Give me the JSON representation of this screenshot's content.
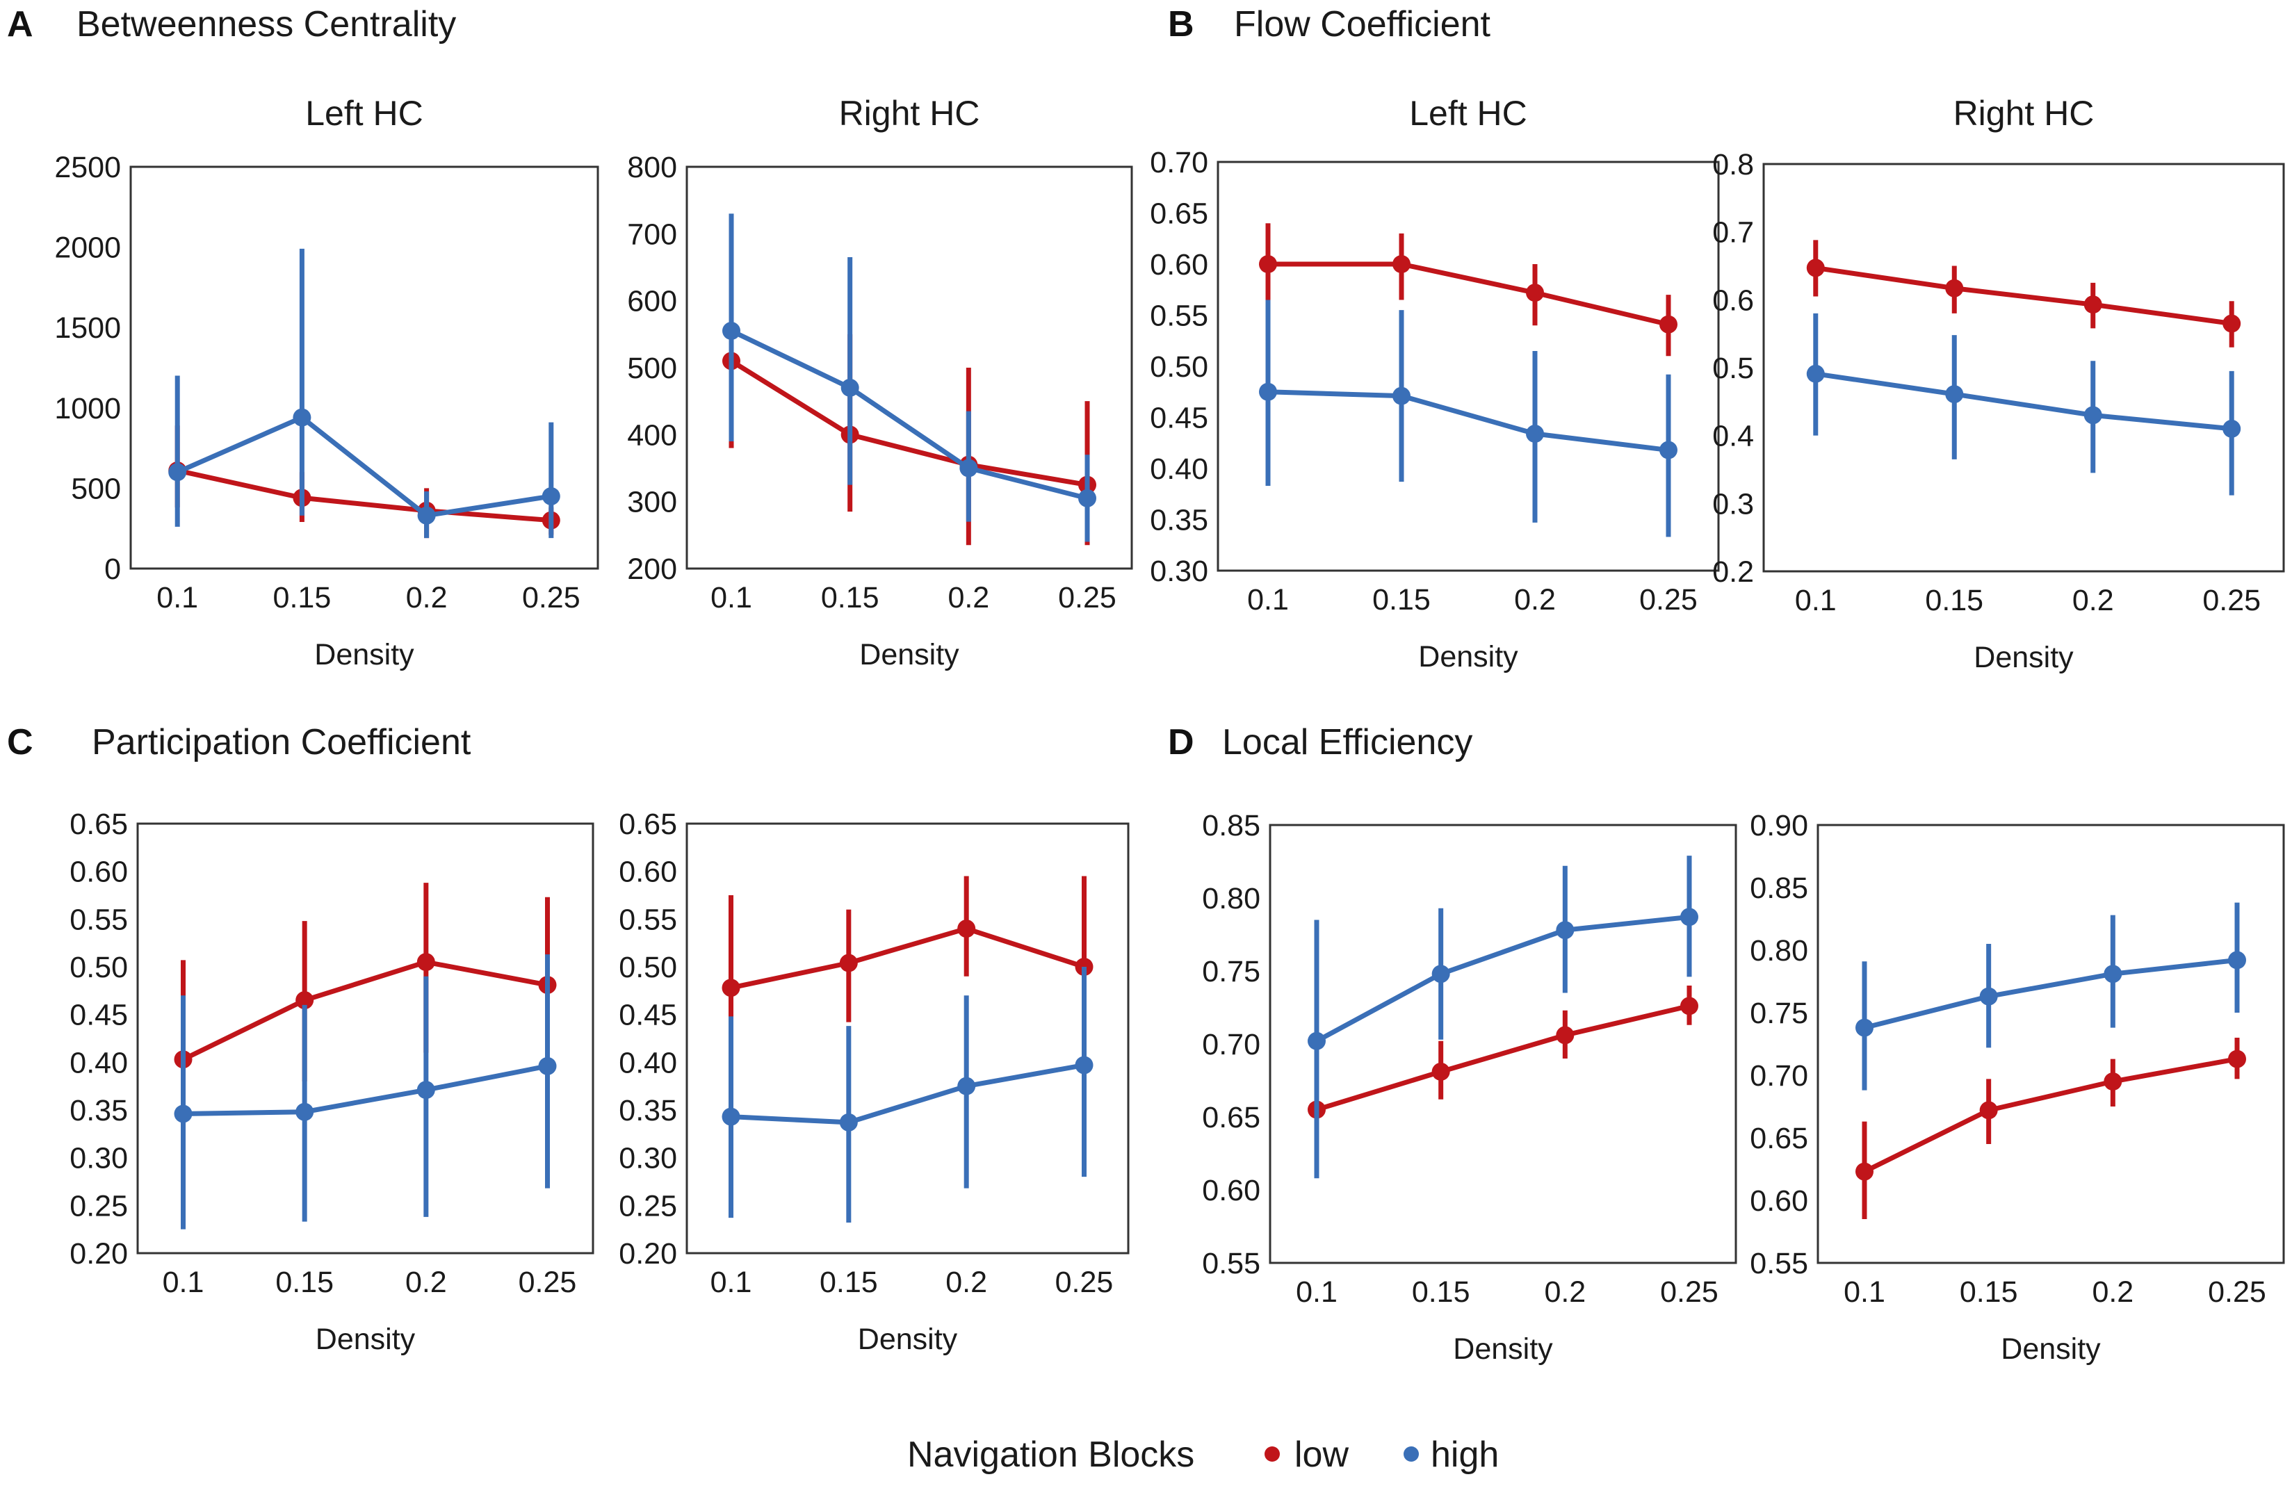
{
  "legend": {
    "title": "Navigation Blocks",
    "entries": [
      {
        "label": "low",
        "color": "#c0151a"
      },
      {
        "label": "high",
        "color": "#3a6fb7"
      }
    ]
  },
  "panels": [
    {
      "letter": "A",
      "title": "Betweenness Centrality"
    },
    {
      "letter": "B",
      "title": "Flow Coefficient"
    },
    {
      "letter": "C",
      "title": "Participation Coefficient"
    },
    {
      "letter": "D",
      "title": "Local Efficiency"
    }
  ],
  "chart_data": [
    {
      "type": "line",
      "panel": "A",
      "subtitle": "Left HC",
      "xlabel": "Density",
      "categories": [
        "0.1",
        "0.15",
        "0.2",
        "0.25"
      ],
      "ylim": [
        0,
        2500
      ],
      "yticks": [
        "0",
        "500",
        "1000",
        "1500",
        "2000",
        "2500"
      ],
      "series": [
        {
          "name": "low",
          "color": "#c0151a",
          "values": [
            610,
            440,
            360,
            300
          ],
          "lo": [
            380,
            290,
            190,
            210
          ],
          "hi": [
            890,
            600,
            500,
            380
          ]
        },
        {
          "name": "high",
          "color": "#3a6fb7",
          "values": [
            600,
            940,
            330,
            450
          ],
          "lo": [
            260,
            330,
            190,
            190
          ],
          "hi": [
            1200,
            1990,
            480,
            910
          ]
        }
      ]
    },
    {
      "type": "line",
      "panel": "A",
      "subtitle": "Right HC",
      "xlabel": "Density",
      "categories": [
        "0.1",
        "0.15",
        "0.2",
        "0.25"
      ],
      "ylim": [
        200,
        800
      ],
      "yticks": [
        "200",
        "300",
        "400",
        "500",
        "600",
        "700",
        "800"
      ],
      "series": [
        {
          "name": "low",
          "color": "#c0151a",
          "values": [
            510,
            400,
            355,
            325
          ],
          "lo": [
            380,
            285,
            235,
            235
          ],
          "hi": [
            640,
            550,
            500,
            450
          ]
        },
        {
          "name": "high",
          "color": "#3a6fb7",
          "values": [
            555,
            470,
            350,
            305
          ],
          "lo": [
            390,
            325,
            270,
            240
          ],
          "hi": [
            730,
            665,
            435,
            370
          ]
        }
      ]
    },
    {
      "type": "line",
      "panel": "B",
      "subtitle": "Left HC",
      "xlabel": "Density",
      "categories": [
        "0.1",
        "0.15",
        "0.2",
        "0.25"
      ],
      "ylim": [
        0.3,
        0.7
      ],
      "yticks": [
        "0.30",
        "0.35",
        "0.40",
        "0.45",
        "0.50",
        "0.55",
        "0.60",
        "0.65",
        "0.70"
      ],
      "series": [
        {
          "name": "low",
          "color": "#c0151a",
          "values": [
            0.6,
            0.6,
            0.572,
            0.541
          ],
          "lo": [
            0.558,
            0.565,
            0.54,
            0.51
          ],
          "hi": [
            0.64,
            0.63,
            0.6,
            0.57
          ]
        },
        {
          "name": "high",
          "color": "#3a6fb7",
          "values": [
            0.475,
            0.471,
            0.434,
            0.418
          ],
          "lo": [
            0.383,
            0.387,
            0.347,
            0.333
          ],
          "hi": [
            0.565,
            0.555,
            0.515,
            0.492
          ]
        }
      ]
    },
    {
      "type": "line",
      "panel": "B",
      "subtitle": "Right HC",
      "xlabel": "Density",
      "categories": [
        "0.1",
        "0.15",
        "0.2",
        "0.25"
      ],
      "ylim": [
        0.2,
        0.8
      ],
      "yticks": [
        "0.2",
        "0.3",
        "0.4",
        "0.5",
        "0.6",
        "0.7",
        "0.8"
      ],
      "series": [
        {
          "name": "low",
          "color": "#c0151a",
          "values": [
            0.647,
            0.617,
            0.593,
            0.565
          ],
          "lo": [
            0.605,
            0.58,
            0.558,
            0.53
          ],
          "hi": [
            0.688,
            0.65,
            0.625,
            0.598
          ]
        },
        {
          "name": "high",
          "color": "#3a6fb7",
          "values": [
            0.491,
            0.461,
            0.43,
            0.41
          ],
          "lo": [
            0.4,
            0.365,
            0.345,
            0.312
          ],
          "hi": [
            0.58,
            0.548,
            0.51,
            0.495
          ]
        }
      ]
    },
    {
      "type": "line",
      "panel": "C",
      "subtitle": "",
      "xlabel": "Density",
      "categories": [
        "0.1",
        "0.15",
        "0.2",
        "0.25"
      ],
      "ylim": [
        0.2,
        0.65
      ],
      "yticks": [
        "0.20",
        "0.25",
        "0.30",
        "0.35",
        "0.40",
        "0.45",
        "0.50",
        "0.55",
        "0.60",
        "0.65"
      ],
      "series": [
        {
          "name": "low",
          "color": "#c0151a",
          "values": [
            0.403,
            0.465,
            0.505,
            0.481
          ],
          "lo": [
            0.298,
            0.38,
            0.41,
            0.39
          ],
          "hi": [
            0.507,
            0.548,
            0.588,
            0.573
          ]
        },
        {
          "name": "high",
          "color": "#3a6fb7",
          "values": [
            0.346,
            0.348,
            0.371,
            0.396
          ],
          "lo": [
            0.225,
            0.233,
            0.238,
            0.268
          ],
          "hi": [
            0.47,
            0.46,
            0.49,
            0.513
          ]
        }
      ]
    },
    {
      "type": "line",
      "panel": "C",
      "subtitle": "",
      "xlabel": "Density",
      "categories": [
        "0.1",
        "0.15",
        "0.2",
        "0.25"
      ],
      "ylim": [
        0.2,
        0.65
      ],
      "yticks": [
        "0.20",
        "0.25",
        "0.30",
        "0.35",
        "0.40",
        "0.45",
        "0.50",
        "0.55",
        "0.60",
        "0.65"
      ],
      "series": [
        {
          "name": "low",
          "color": "#c0151a",
          "values": [
            0.478,
            0.504,
            0.54,
            0.5
          ],
          "lo": [
            0.372,
            0.442,
            0.49,
            0.4
          ],
          "hi": [
            0.575,
            0.56,
            0.595,
            0.595
          ]
        },
        {
          "name": "high",
          "color": "#3a6fb7",
          "values": [
            0.343,
            0.337,
            0.375,
            0.397
          ],
          "lo": [
            0.237,
            0.232,
            0.268,
            0.28
          ],
          "hi": [
            0.448,
            0.438,
            0.47,
            0.5
          ]
        }
      ]
    },
    {
      "type": "line",
      "panel": "D",
      "subtitle": "",
      "xlabel": "Density",
      "categories": [
        "0.1",
        "0.15",
        "0.2",
        "0.25"
      ],
      "ylim": [
        0.55,
        0.85
      ],
      "yticks": [
        "0.55",
        "0.60",
        "0.65",
        "0.70",
        "0.75",
        "0.80",
        "0.85"
      ],
      "series": [
        {
          "name": "low",
          "color": "#c0151a",
          "values": [
            0.655,
            0.681,
            0.706,
            0.726
          ],
          "lo": [
            0.625,
            0.662,
            0.69,
            0.713
          ],
          "hi": [
            0.688,
            0.702,
            0.723,
            0.74
          ]
        },
        {
          "name": "high",
          "color": "#3a6fb7",
          "values": [
            0.702,
            0.748,
            0.778,
            0.787
          ],
          "lo": [
            0.608,
            0.703,
            0.735,
            0.746
          ],
          "hi": [
            0.785,
            0.793,
            0.822,
            0.829
          ]
        }
      ]
    },
    {
      "type": "line",
      "panel": "D",
      "subtitle": "",
      "xlabel": "Density",
      "categories": [
        "0.1",
        "0.15",
        "0.2",
        "0.25"
      ],
      "ylim": [
        0.55,
        0.9
      ],
      "yticks": [
        "0.55",
        "0.60",
        "0.65",
        "0.70",
        "0.75",
        "0.80",
        "0.85",
        "0.90"
      ],
      "series": [
        {
          "name": "low",
          "color": "#c0151a",
          "values": [
            0.623,
            0.672,
            0.695,
            0.713
          ],
          "lo": [
            0.585,
            0.645,
            0.675,
            0.697
          ],
          "hi": [
            0.663,
            0.697,
            0.713,
            0.73
          ]
        },
        {
          "name": "high",
          "color": "#3a6fb7",
          "values": [
            0.738,
            0.763,
            0.781,
            0.792
          ],
          "lo": [
            0.688,
            0.722,
            0.738,
            0.75
          ],
          "hi": [
            0.791,
            0.805,
            0.828,
            0.838
          ]
        }
      ]
    }
  ]
}
